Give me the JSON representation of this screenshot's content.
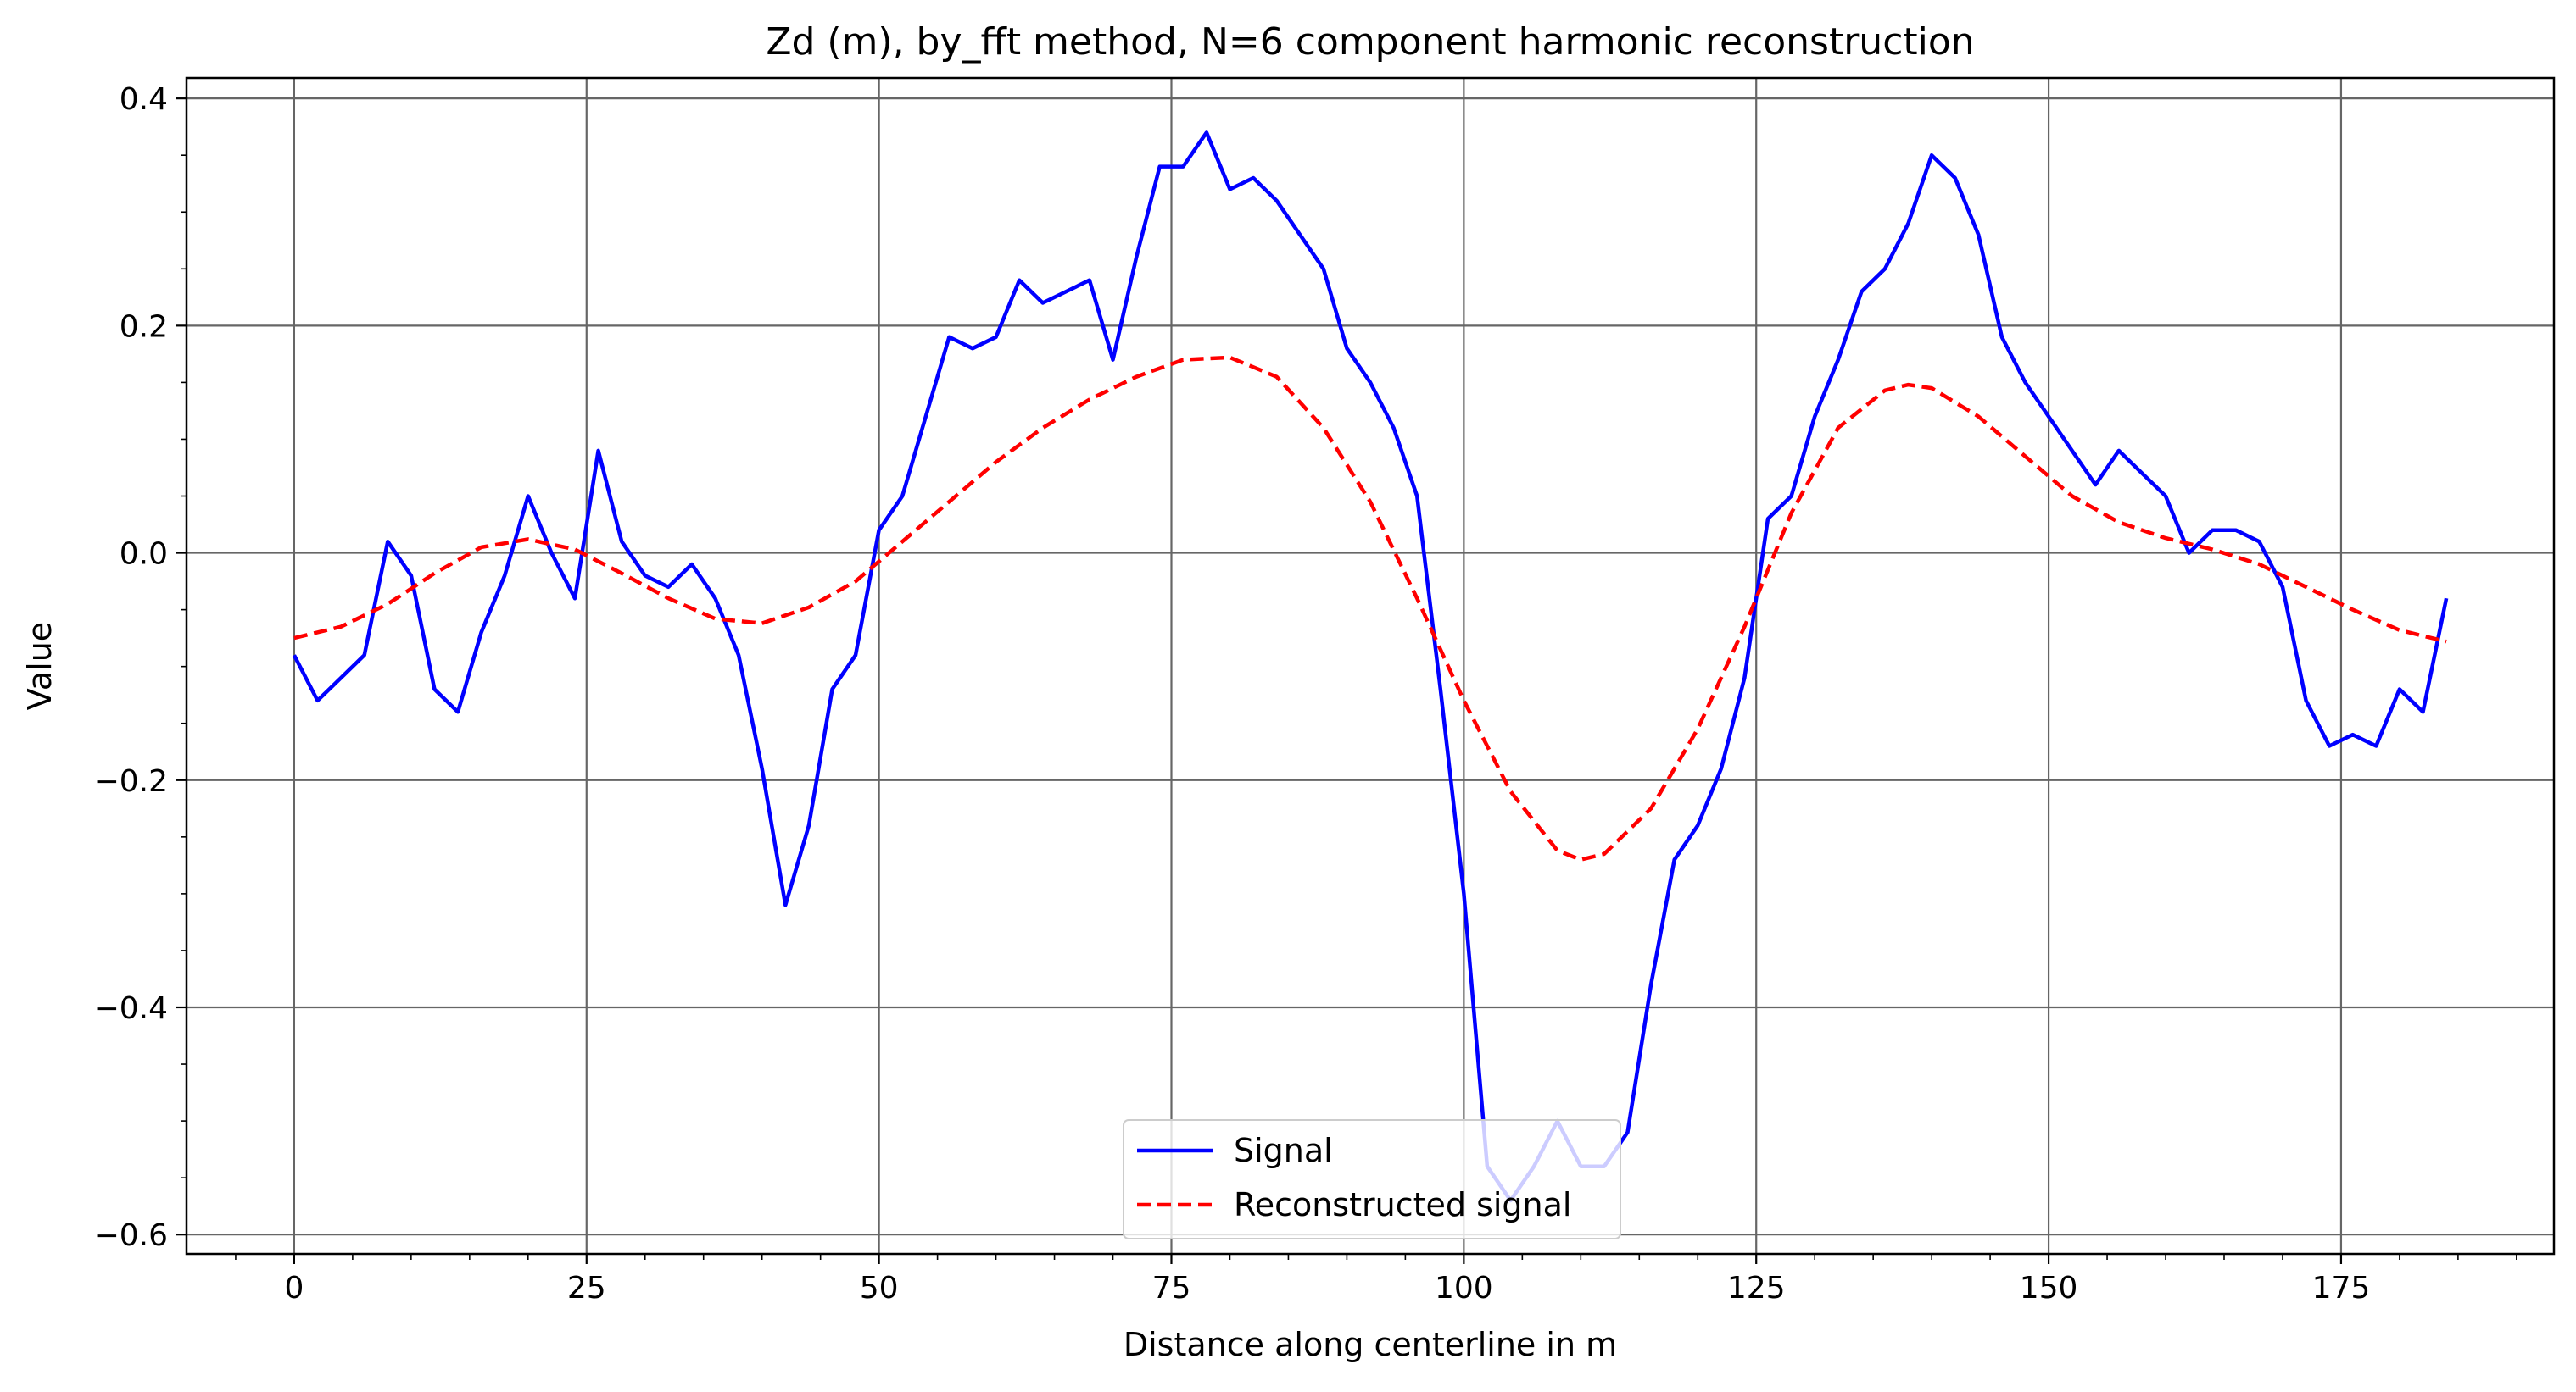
{
  "chart_data": {
    "type": "line",
    "title": "Zd (m), by_fft method, N=6 component harmonic reconstruction",
    "xlabel": "Distance along centerline in m",
    "ylabel": "Value",
    "xlim": [
      -9.2,
      193.2
    ],
    "ylim": [
      -0.617,
      0.418
    ],
    "xticks": [
      0,
      25,
      50,
      75,
      100,
      125,
      150,
      175
    ],
    "yticks": [
      -0.6,
      -0.4,
      -0.2,
      0.0,
      0.2,
      0.4
    ],
    "xtick_labels": [
      "0",
      "25",
      "50",
      "75",
      "100",
      "125",
      "150",
      "175"
    ],
    "ytick_labels": [
      "−0.6",
      "−0.4",
      "−0.2",
      "0.0",
      "0.2",
      "0.4"
    ],
    "grid": true,
    "legend_position": "lower center",
    "series": [
      {
        "name": "Signal",
        "color": "#0000ff",
        "style": "solid",
        "x": [
          0,
          2,
          4,
          6,
          8,
          10,
          12,
          14,
          16,
          18,
          20,
          22,
          24,
          26,
          28,
          30,
          32,
          34,
          36,
          38,
          40,
          42,
          44,
          46,
          48,
          50,
          52,
          54,
          56,
          58,
          60,
          62,
          64,
          66,
          68,
          70,
          72,
          74,
          76,
          78,
          80,
          82,
          84,
          86,
          88,
          90,
          92,
          94,
          96,
          98,
          100,
          102,
          104,
          106,
          108,
          110,
          112,
          114,
          116,
          118,
          120,
          122,
          124,
          126,
          128,
          130,
          132,
          134,
          136,
          138,
          140,
          142,
          144,
          146,
          148,
          150,
          152,
          154,
          156,
          158,
          160,
          162,
          164,
          166,
          168,
          170,
          172,
          174,
          176,
          178,
          180,
          182,
          184
        ],
        "y": [
          -0.09,
          -0.13,
          -0.11,
          -0.09,
          0.01,
          -0.02,
          -0.12,
          -0.14,
          -0.07,
          -0.02,
          0.05,
          0.0,
          -0.04,
          0.09,
          0.01,
          -0.02,
          -0.03,
          -0.01,
          -0.04,
          -0.09,
          -0.19,
          -0.31,
          -0.24,
          -0.12,
          -0.09,
          0.02,
          0.05,
          0.12,
          0.19,
          0.18,
          0.19,
          0.24,
          0.22,
          0.23,
          0.24,
          0.17,
          0.26,
          0.34,
          0.34,
          0.37,
          0.32,
          0.33,
          0.31,
          0.28,
          0.25,
          0.18,
          0.15,
          0.11,
          0.05,
          -0.12,
          -0.3,
          -0.54,
          -0.57,
          -0.54,
          -0.5,
          -0.54,
          -0.54,
          -0.51,
          -0.38,
          -0.27,
          -0.24,
          -0.19,
          -0.11,
          0.03,
          0.05,
          0.12,
          0.17,
          0.23,
          0.25,
          0.29,
          0.35,
          0.33,
          0.28,
          0.19,
          0.15,
          0.12,
          0.09,
          0.06,
          0.09,
          0.07,
          0.05,
          0.0,
          0.02,
          0.02,
          0.01,
          -0.03,
          -0.13,
          -0.17,
          -0.16,
          -0.17,
          -0.12,
          -0.14,
          -0.04
        ]
      },
      {
        "name": "Reconstructed signal",
        "color": "#ff0000",
        "style": "dashed",
        "x": [
          0,
          4,
          8,
          12,
          16,
          20,
          24,
          28,
          32,
          36,
          40,
          44,
          48,
          52,
          56,
          60,
          64,
          68,
          72,
          76,
          80,
          84,
          88,
          92,
          96,
          100,
          104,
          108,
          110,
          112,
          116,
          120,
          124,
          128,
          132,
          136,
          138,
          140,
          144,
          148,
          152,
          156,
          160,
          164,
          168,
          172,
          176,
          180,
          184
        ],
        "y": [
          -0.075,
          -0.065,
          -0.045,
          -0.018,
          0.005,
          0.012,
          0.003,
          -0.018,
          -0.04,
          -0.058,
          -0.062,
          -0.048,
          -0.025,
          0.01,
          0.045,
          0.08,
          0.11,
          0.135,
          0.155,
          0.17,
          0.172,
          0.155,
          0.11,
          0.045,
          -0.04,
          -0.13,
          -0.21,
          -0.262,
          -0.27,
          -0.265,
          -0.225,
          -0.155,
          -0.065,
          0.035,
          0.11,
          0.143,
          0.148,
          0.145,
          0.12,
          0.085,
          0.05,
          0.027,
          0.013,
          0.003,
          -0.01,
          -0.03,
          -0.05,
          -0.068,
          -0.078
        ]
      }
    ]
  }
}
